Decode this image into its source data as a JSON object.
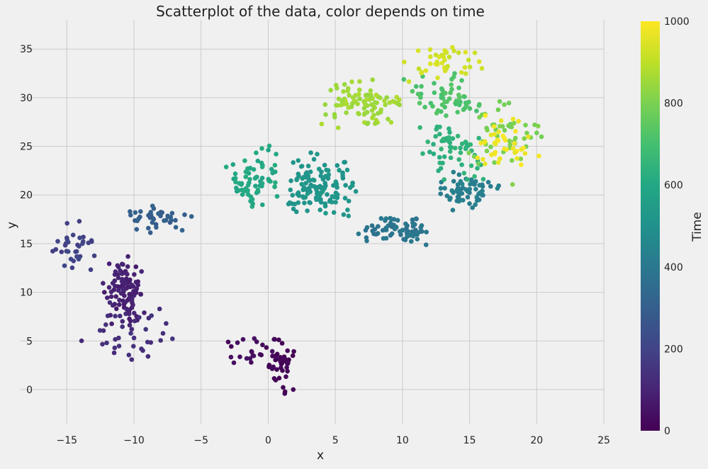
{
  "chart_data": {
    "type": "scatter",
    "title": "Scatterplot of the data, color depends on time",
    "xlabel": "x",
    "ylabel": "y",
    "xlim": [
      -18.5,
      25
    ],
    "ylim": [
      -3.5,
      38
    ],
    "xticks": [
      -15,
      -10,
      -5,
      0,
      5,
      10,
      15,
      20,
      25
    ],
    "yticks": [
      0,
      5,
      10,
      15,
      20,
      25,
      30,
      35
    ],
    "grid": true,
    "colorbar": {
      "label": "Time",
      "range": [
        0,
        1000
      ],
      "ticks": [
        0,
        200,
        400,
        600,
        800,
        1000
      ],
      "colormap": "viridis",
      "colors": [
        "#440154",
        "#482475",
        "#414487",
        "#355f8d",
        "#2a788e",
        "#21918c",
        "#22a884",
        "#44bf70",
        "#7ad151",
        "#bddf26",
        "#fde725"
      ]
    },
    "point_clusters": [
      {
        "time": 10,
        "n": 45,
        "x": [
          -0.5,
          2.4
        ],
        "y": [
          -1.5,
          6.5
        ]
      },
      {
        "time": 30,
        "n": 20,
        "x": [
          -3.5,
          1.0
        ],
        "y": [
          2.0,
          6.0
        ]
      },
      {
        "time": 90,
        "n": 110,
        "x": [
          -12.5,
          -8.8
        ],
        "y": [
          6.0,
          14.5
        ]
      },
      {
        "time": 130,
        "n": 40,
        "x": [
          -14.5,
          -5.5
        ],
        "y": [
          1.0,
          10.5
        ]
      },
      {
        "time": 200,
        "n": 35,
        "x": [
          -17.0,
          -12.0
        ],
        "y": [
          11.5,
          17.8
        ]
      },
      {
        "time": 300,
        "n": 40,
        "x": [
          -11.5,
          -5.0
        ],
        "y": [
          15.5,
          20.0
        ]
      },
      {
        "time": 390,
        "n": 70,
        "x": [
          5.0,
          13.0
        ],
        "y": [
          14.5,
          18.5
        ]
      },
      {
        "time": 430,
        "n": 60,
        "x": [
          11.0,
          18.0
        ],
        "y": [
          17.5,
          23.0
        ]
      },
      {
        "time": 520,
        "n": 130,
        "x": [
          0.0,
          7.5
        ],
        "y": [
          16.5,
          25.0
        ]
      },
      {
        "time": 600,
        "n": 70,
        "x": [
          -3.5,
          1.5
        ],
        "y": [
          18.0,
          25.5
        ]
      },
      {
        "time": 640,
        "n": 60,
        "x": [
          10.0,
          17.5
        ],
        "y": [
          21.0,
          28.5
        ]
      },
      {
        "time": 720,
        "n": 60,
        "x": [
          9.5,
          17.0
        ],
        "y": [
          27.0,
          33.0
        ]
      },
      {
        "time": 800,
        "n": 50,
        "x": [
          14.0,
          21.5
        ],
        "y": [
          20.5,
          31.5
        ]
      },
      {
        "time": 860,
        "n": 90,
        "x": [
          3.0,
          10.5
        ],
        "y": [
          26.0,
          33.0
        ]
      },
      {
        "time": 930,
        "n": 40,
        "x": [
          9.0,
          17.0
        ],
        "y": [
          31.0,
          36.5
        ]
      },
      {
        "time": 980,
        "n": 40,
        "x": [
          14.5,
          21.5
        ],
        "y": [
          22.0,
          28.5
        ]
      }
    ]
  }
}
